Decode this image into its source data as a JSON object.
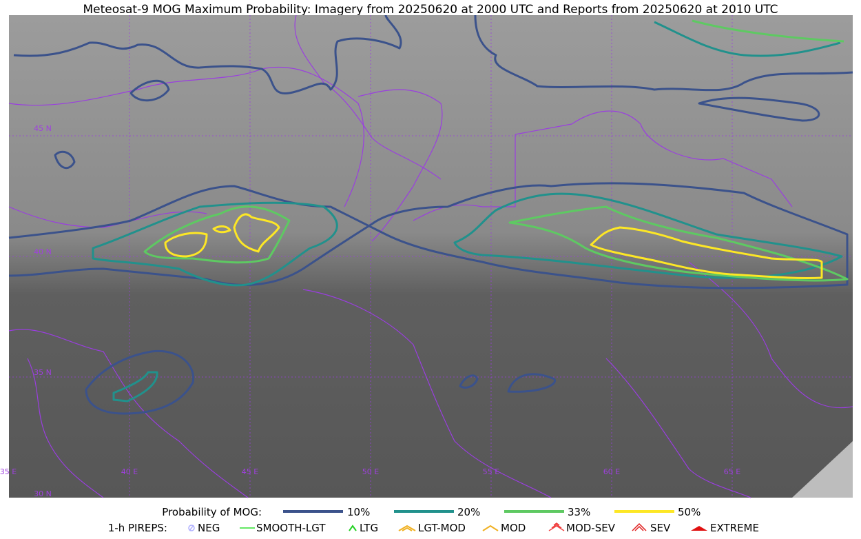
{
  "title": "Meteosat-9 MOG Maximum Probability: Imagery from 20250620 at 2000 UTC and Reports from 20250620 at 2010 UTC",
  "grid_labels": {
    "latitude": [
      "45 N",
      "40 N",
      "35 N",
      "30 N"
    ],
    "longitude": [
      "35 E",
      "40 E",
      "45 E",
      "50 E",
      "55 E",
      "60 E",
      "65 E"
    ]
  },
  "legend": {
    "mog_label": "Probability of MOG:",
    "mog_levels": [
      "10%",
      "20%",
      "33%",
      "50%"
    ],
    "pirep_label": "1-h PIREPS:",
    "pireps": [
      "NEG",
      "SMOOTH-LGT",
      "LTG",
      "LGT-MOD",
      "MOD",
      "MOD-SEV",
      "SEV",
      "EXTREME"
    ]
  }
}
